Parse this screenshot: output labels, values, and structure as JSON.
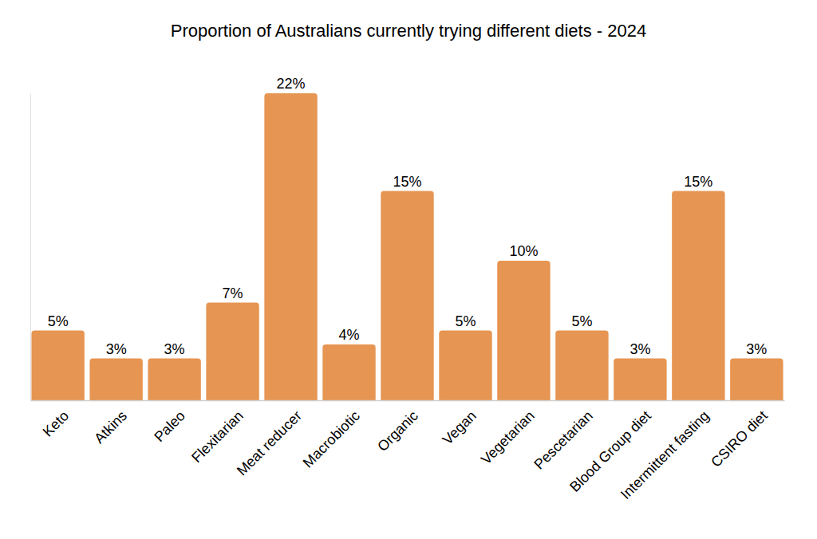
{
  "chart_data": {
    "type": "bar",
    "title": "Proportion of Australians currently trying different diets - 2024",
    "categories": [
      "Keto",
      "Atkins",
      "Paleo",
      "Flexitarian",
      "Meat reducer",
      "Macrobiotic",
      "Organic",
      "Vegan",
      "Vegetarian",
      "Pescetarian",
      "Blood Group diet",
      "Intermittent fasting",
      "CSIRO diet"
    ],
    "values": [
      5,
      3,
      3,
      7,
      22,
      4,
      15,
      5,
      10,
      5,
      3,
      15,
      3
    ],
    "value_labels": [
      "5%",
      "3%",
      "3%",
      "7%",
      "22%",
      "4%",
      "15%",
      "5%",
      "10%",
      "5%",
      "3%",
      "15%",
      "3%"
    ],
    "color": "#e69552",
    "ylim": [
      0,
      22
    ],
    "grid": false,
    "data_labels": true,
    "tick_labels": "x"
  }
}
